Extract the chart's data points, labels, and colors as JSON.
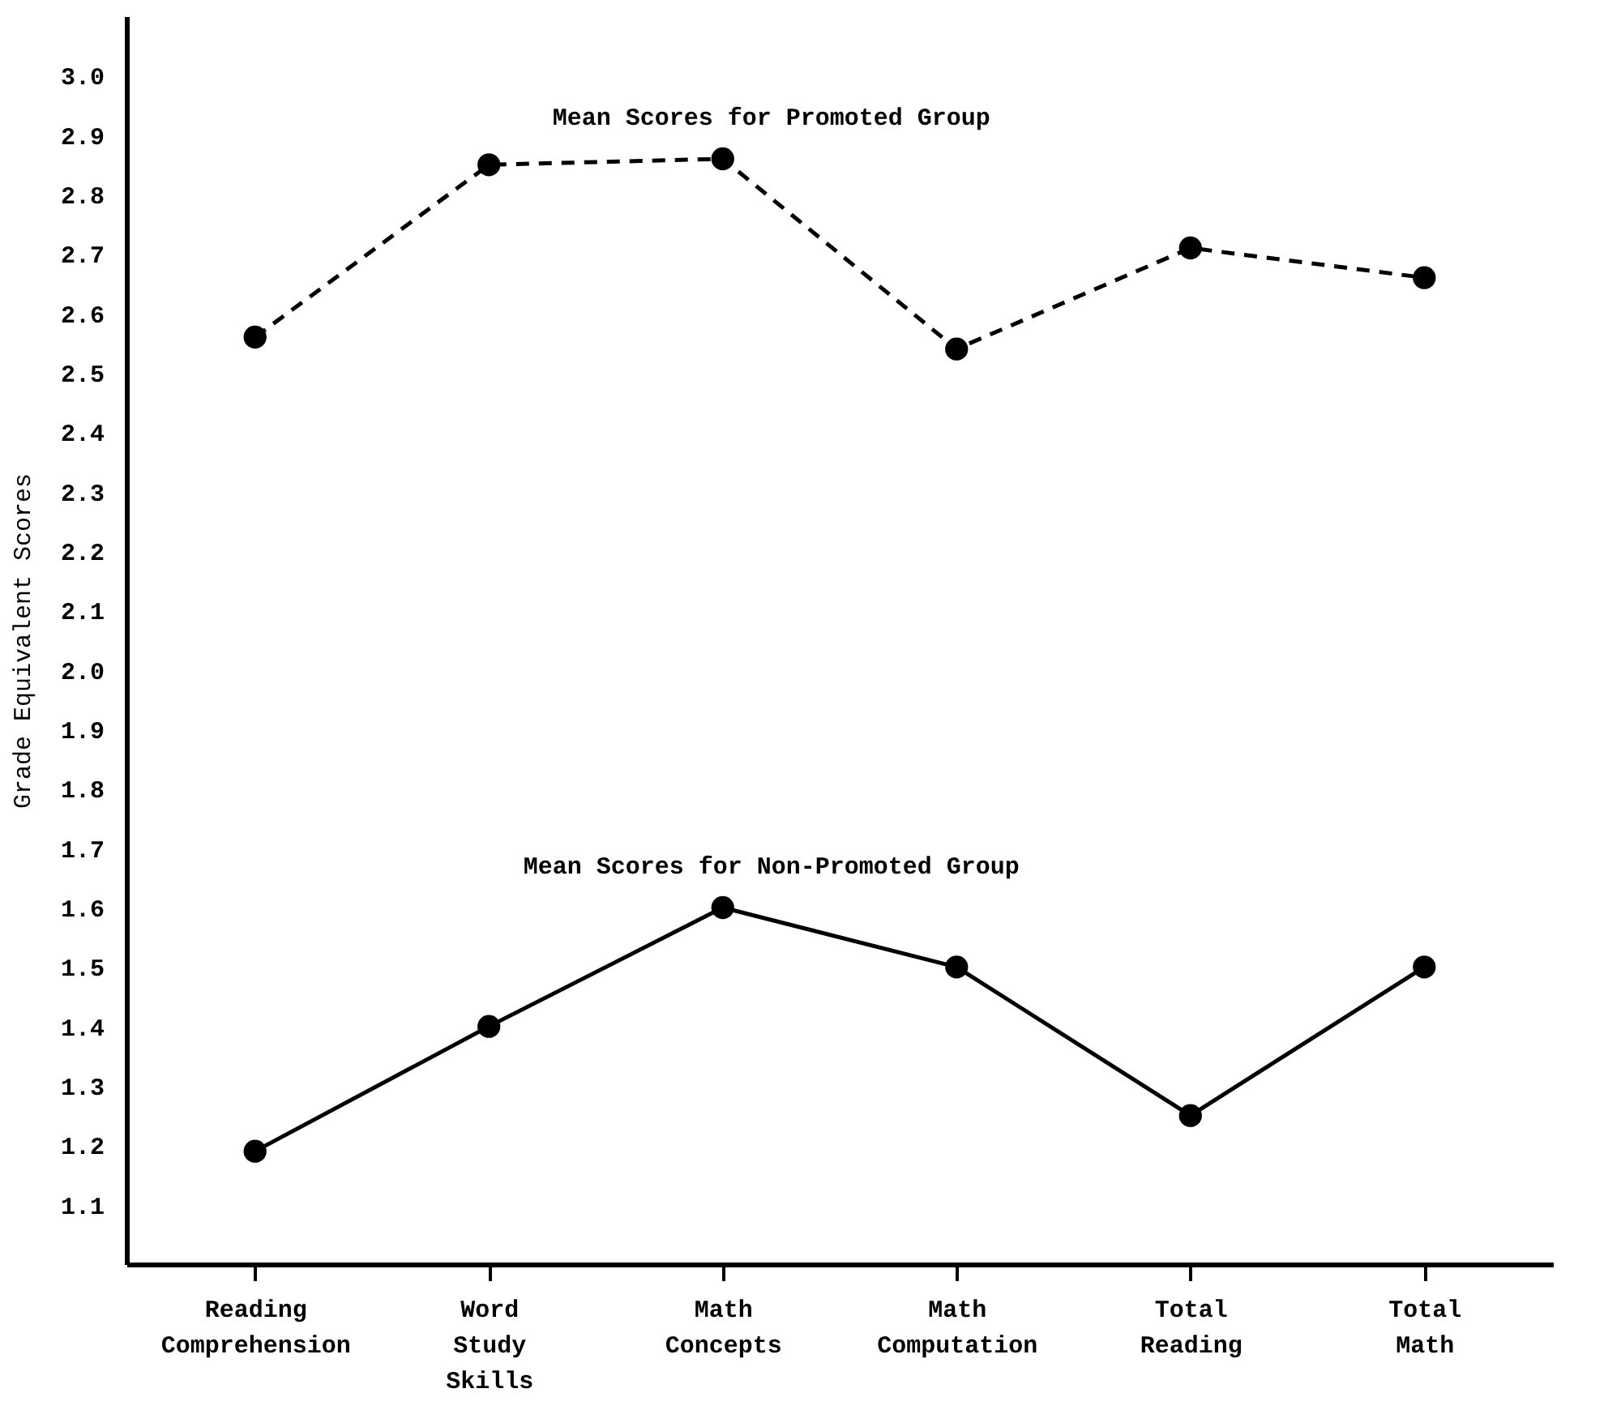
{
  "chart_data": {
    "type": "line",
    "ylabel": "Grade Equivalent Scores",
    "categories": [
      "Reading Comprehension",
      "Word Study Skills",
      "Math Concepts",
      "Math Computation",
      "Total Reading",
      "Total Math"
    ],
    "series": [
      {
        "name": "Mean Scores for Promoted Group",
        "color": "#000000",
        "line_style": "dashed",
        "values": [
          2.56,
          2.85,
          2.86,
          2.54,
          2.71,
          2.66
        ]
      },
      {
        "name": "Mean Scores for Non-Promoted Group",
        "color": "#000000",
        "line_style": "solid",
        "values": [
          1.19,
          1.4,
          1.6,
          1.5,
          1.25,
          1.5
        ]
      }
    ],
    "ylim": [
      1.0,
      3.1
    ],
    "yticks": [
      1.1,
      1.2,
      1.3,
      1.4,
      1.5,
      1.6,
      1.7,
      1.8,
      1.9,
      {
        "value": 2,
        "label": "2.0"
      },
      2.1,
      2.2,
      2.3,
      2.4,
      2.5,
      2.6,
      2.7,
      2.8,
      2.9,
      {
        "value": 3,
        "label": "3.0"
      }
    ],
    "grid": false,
    "marker": "circle"
  }
}
